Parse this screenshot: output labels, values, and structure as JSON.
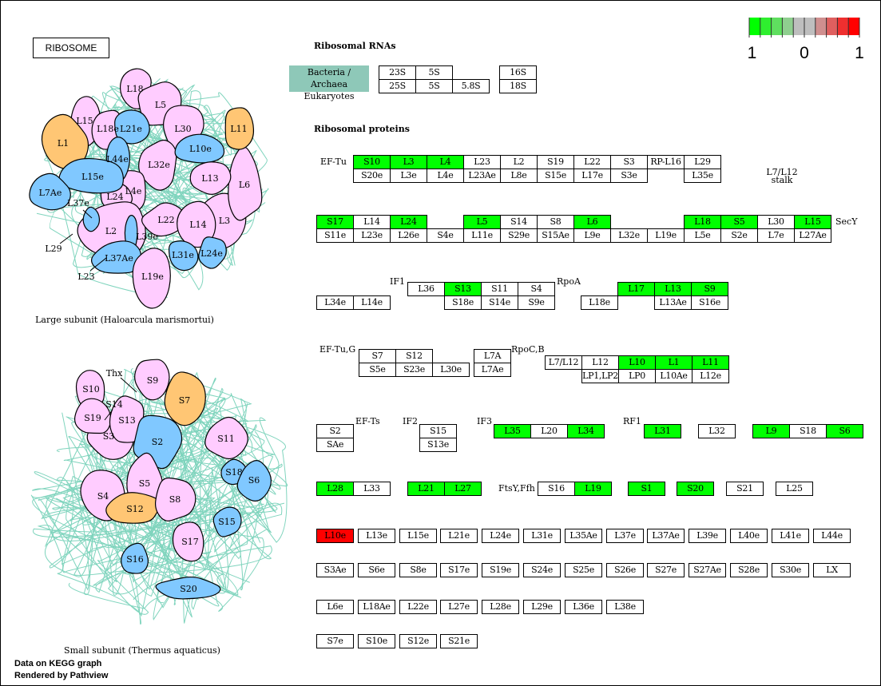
{
  "title": "RIBOSOME",
  "headers": {
    "rna": "Ribosomal RNAs",
    "proteins": "Ribosomal proteins"
  },
  "taxa": {
    "line1": "Bacteria / Archaea",
    "line2": "Eukaryotes"
  },
  "rrna": [
    "23S",
    "5S",
    "25S",
    "5S",
    "5.8S",
    "16S",
    "18S"
  ],
  "legend": {
    "min": "-1",
    "mid": "0",
    "max": "1",
    "colors": [
      "#00ff00",
      "#2fef2f",
      "#5fdf5f",
      "#8fcf8f",
      "#bebebe",
      "#bebebe",
      "#cf8f8f",
      "#df5f5f",
      "#ef2f2f",
      "#ff0000"
    ]
  },
  "colors": {
    "up": "#ff0000",
    "down": "#00ff00",
    "none": "#ffffff",
    "teal": "#8ec8b8",
    "pink": "#ffccff",
    "blue": "#80c8ff",
    "orange": "#ffc674"
  },
  "side_labels": {
    "ef_tu": "EF-Tu",
    "stalk1": "L7/L12",
    "stalk2": "stalk",
    "secy": "SecY",
    "if1": "IF1",
    "rpoa": "RpoA",
    "ef_tug": "EF-Tu,G",
    "rpocb": "RpoC,B",
    "ef_ts": "EF-Ts",
    "if2": "IF2",
    "if3": "IF3",
    "rf1": "RF1",
    "ftsy": "FtsY,Ffh"
  },
  "proteins": [
    {
      "label": "S10",
      "state": "down"
    },
    {
      "label": "L3",
      "state": "down"
    },
    {
      "label": "L4",
      "state": "down"
    },
    {
      "label": "L23",
      "state": "none"
    },
    {
      "label": "L2",
      "state": "none"
    },
    {
      "label": "S19",
      "state": "none"
    },
    {
      "label": "L22",
      "state": "none"
    },
    {
      "label": "S3",
      "state": "none"
    },
    {
      "label": "RP-L16",
      "state": "none"
    },
    {
      "label": "L29",
      "state": "none"
    },
    {
      "label": "S20e",
      "state": "none"
    },
    {
      "label": "L3e",
      "state": "none"
    },
    {
      "label": "L4e",
      "state": "none"
    },
    {
      "label": "L23Ae",
      "state": "none"
    },
    {
      "label": "L8e",
      "state": "none"
    },
    {
      "label": "S15e",
      "state": "none"
    },
    {
      "label": "L17e",
      "state": "none"
    },
    {
      "label": "S3e",
      "state": "none"
    },
    {
      "label": "L35e",
      "state": "none"
    },
    {
      "label": "S17",
      "state": "down"
    },
    {
      "label": "L14",
      "state": "none"
    },
    {
      "label": "L24",
      "state": "down"
    },
    {
      "label": "L5",
      "state": "down"
    },
    {
      "label": "S14",
      "state": "none"
    },
    {
      "label": "S8",
      "state": "none"
    },
    {
      "label": "L6",
      "state": "down"
    },
    {
      "label": "L18",
      "state": "down"
    },
    {
      "label": "S5",
      "state": "down"
    },
    {
      "label": "L30",
      "state": "none"
    },
    {
      "label": "L15",
      "state": "down"
    },
    {
      "label": "S11e",
      "state": "none"
    },
    {
      "label": "L23e",
      "state": "none"
    },
    {
      "label": "L26e",
      "state": "none"
    },
    {
      "label": "S4e",
      "state": "none"
    },
    {
      "label": "L11e",
      "state": "none"
    },
    {
      "label": "S29e",
      "state": "none"
    },
    {
      "label": "S15Ae",
      "state": "none"
    },
    {
      "label": "L9e",
      "state": "none"
    },
    {
      "label": "L32e",
      "state": "none"
    },
    {
      "label": "L19e",
      "state": "none"
    },
    {
      "label": "L5e",
      "state": "none"
    },
    {
      "label": "S2e",
      "state": "none"
    },
    {
      "label": "L7e",
      "state": "none"
    },
    {
      "label": "L27Ae",
      "state": "none"
    },
    {
      "label": "L36",
      "state": "none"
    },
    {
      "label": "S13",
      "state": "down"
    },
    {
      "label": "S11",
      "state": "none"
    },
    {
      "label": "S4",
      "state": "none"
    },
    {
      "label": "L17",
      "state": "down"
    },
    {
      "label": "L13",
      "state": "down"
    },
    {
      "label": "S9",
      "state": "down"
    },
    {
      "label": "L34e",
      "state": "none"
    },
    {
      "label": "L14e",
      "state": "none"
    },
    {
      "label": "S18e",
      "state": "none"
    },
    {
      "label": "S14e",
      "state": "none"
    },
    {
      "label": "S9e",
      "state": "none"
    },
    {
      "label": "L18e",
      "state": "none"
    },
    {
      "label": "L13Ae",
      "state": "none"
    },
    {
      "label": "S16e",
      "state": "none"
    },
    {
      "label": "S7",
      "state": "none"
    },
    {
      "label": "S12",
      "state": "none"
    },
    {
      "label": "S5e",
      "state": "none"
    },
    {
      "label": "S23e",
      "state": "none"
    },
    {
      "label": "L30e",
      "state": "none"
    },
    {
      "label": "L7A",
      "state": "none"
    },
    {
      "label": "L7Ae",
      "state": "none"
    },
    {
      "label": "L7/L12",
      "state": "none"
    },
    {
      "label": "L12",
      "state": "none"
    },
    {
      "label": "L10",
      "state": "down"
    },
    {
      "label": "L1",
      "state": "down"
    },
    {
      "label": "L11",
      "state": "down"
    },
    {
      "label": "LP1,LP2",
      "state": "none"
    },
    {
      "label": "LP0",
      "state": "none"
    },
    {
      "label": "L10Ae",
      "state": "none"
    },
    {
      "label": "L12e",
      "state": "none"
    },
    {
      "label": "S2",
      "state": "none"
    },
    {
      "label": "SAe",
      "state": "none"
    },
    {
      "label": "S15",
      "state": "none"
    },
    {
      "label": "S13e",
      "state": "none"
    },
    {
      "label": "L35",
      "state": "down"
    },
    {
      "label": "L20",
      "state": "none"
    },
    {
      "label": "L34",
      "state": "down"
    },
    {
      "label": "L31",
      "state": "down"
    },
    {
      "label": "L32",
      "state": "none"
    },
    {
      "label": "L9",
      "state": "down"
    },
    {
      "label": "S18",
      "state": "none"
    },
    {
      "label": "S6",
      "state": "down"
    },
    {
      "label": "L28",
      "state": "down"
    },
    {
      "label": "L33",
      "state": "none"
    },
    {
      "label": "L21",
      "state": "down"
    },
    {
      "label": "L27",
      "state": "down"
    },
    {
      "label": "S16",
      "state": "none"
    },
    {
      "label": "L19",
      "state": "down"
    },
    {
      "label": "S1",
      "state": "down"
    },
    {
      "label": "S20",
      "state": "down"
    },
    {
      "label": "S21",
      "state": "none"
    },
    {
      "label": "L25",
      "state": "none"
    },
    {
      "label": "L10e",
      "state": "up"
    },
    {
      "label": "L13e",
      "state": "none"
    },
    {
      "label": "L15e",
      "state": "none"
    },
    {
      "label": "L21e",
      "state": "none"
    },
    {
      "label": "L24e",
      "state": "none"
    },
    {
      "label": "L31e",
      "state": "none"
    },
    {
      "label": "L35Ae",
      "state": "none"
    },
    {
      "label": "L37e",
      "state": "none"
    },
    {
      "label": "L37Ae",
      "state": "none"
    },
    {
      "label": "L39e",
      "state": "none"
    },
    {
      "label": "L40e",
      "state": "none"
    },
    {
      "label": "L41e",
      "state": "none"
    },
    {
      "label": "L44e",
      "state": "none"
    },
    {
      "label": "S3Ae",
      "state": "none"
    },
    {
      "label": "S6e",
      "state": "none"
    },
    {
      "label": "S8e",
      "state": "none"
    },
    {
      "label": "S17e",
      "state": "none"
    },
    {
      "label": "S19e",
      "state": "none"
    },
    {
      "label": "S24e",
      "state": "none"
    },
    {
      "label": "S25e",
      "state": "none"
    },
    {
      "label": "S26e",
      "state": "none"
    },
    {
      "label": "S27e",
      "state": "none"
    },
    {
      "label": "S27Ae",
      "state": "none"
    },
    {
      "label": "S28e",
      "state": "none"
    },
    {
      "label": "S30e",
      "state": "none"
    },
    {
      "label": "LX",
      "state": "none"
    },
    {
      "label": "L6e",
      "state": "none"
    },
    {
      "label": "L18Ae",
      "state": "none"
    },
    {
      "label": "L22e",
      "state": "none"
    },
    {
      "label": "L27e",
      "state": "none"
    },
    {
      "label": "L28e",
      "state": "none"
    },
    {
      "label": "L29e",
      "state": "none"
    },
    {
      "label": "L36e",
      "state": "none"
    },
    {
      "label": "L38e",
      "state": "none"
    },
    {
      "label": "S7e",
      "state": "none"
    },
    {
      "label": "S10e",
      "state": "none"
    },
    {
      "label": "S12e",
      "state": "none"
    },
    {
      "label": "S21e",
      "state": "none"
    }
  ],
  "large_subunit": {
    "caption": "Large subunit (Haloarcula marismortui)",
    "blobs": [
      {
        "label": "L3",
        "type": "pink"
      },
      {
        "label": "L6",
        "type": "pink"
      },
      {
        "label": "L18",
        "type": "pink"
      },
      {
        "label": "L5",
        "type": "pink"
      },
      {
        "label": "L15",
        "type": "pink"
      },
      {
        "label": "L18e",
        "type": "pink"
      },
      {
        "label": "L30",
        "type": "pink"
      },
      {
        "label": "L21e",
        "type": "blue"
      },
      {
        "label": "L11",
        "type": "orange"
      },
      {
        "label": "L1",
        "type": "orange"
      },
      {
        "label": "L32e",
        "type": "pink"
      },
      {
        "label": "L10e",
        "type": "blue"
      },
      {
        "label": "L13",
        "type": "pink"
      },
      {
        "label": "L4e",
        "type": "pink"
      },
      {
        "label": "L24",
        "type": "pink"
      },
      {
        "label": "L44e",
        "type": "blue"
      },
      {
        "label": "L15e",
        "type": "blue"
      },
      {
        "label": "L7Ae",
        "type": "blue"
      },
      {
        "label": "L2",
        "type": "pink"
      },
      {
        "label": "L37e",
        "type": "blue"
      },
      {
        "label": "L39e",
        "type": "blue"
      },
      {
        "label": "L22",
        "type": "pink"
      },
      {
        "label": "L14",
        "type": "pink"
      },
      {
        "label": "L37Ae",
        "type": "blue"
      },
      {
        "label": "L31e",
        "type": "blue"
      },
      {
        "label": "L24e",
        "type": "blue"
      },
      {
        "label": "L19e",
        "type": "pink"
      }
    ],
    "callouts": [
      "L37e",
      "L39e",
      "L29",
      "L23"
    ]
  },
  "small_subunit": {
    "caption": "Small subunit (Thermus aquaticus)",
    "blobs": [
      {
        "label": "S9",
        "type": "pink"
      },
      {
        "label": "S10",
        "type": "pink"
      },
      {
        "label": "S7",
        "type": "orange"
      },
      {
        "label": "S3",
        "type": "pink"
      },
      {
        "label": "S19",
        "type": "pink"
      },
      {
        "label": "S13",
        "type": "pink"
      },
      {
        "label": "S2",
        "type": "blue"
      },
      {
        "label": "S11",
        "type": "pink"
      },
      {
        "label": "S18",
        "type": "blue"
      },
      {
        "label": "S6",
        "type": "blue"
      },
      {
        "label": "S4",
        "type": "pink"
      },
      {
        "label": "S5",
        "type": "pink"
      },
      {
        "label": "S12",
        "type": "orange"
      },
      {
        "label": "S8",
        "type": "pink"
      },
      {
        "label": "S15",
        "type": "blue"
      },
      {
        "label": "S17",
        "type": "pink"
      },
      {
        "label": "S16",
        "type": "blue"
      },
      {
        "label": "S20",
        "type": "blue"
      }
    ],
    "callouts": [
      "Thx",
      "S14"
    ]
  },
  "footer": {
    "line1": "Data on KEGG graph",
    "line2": "Rendered by Pathview"
  }
}
